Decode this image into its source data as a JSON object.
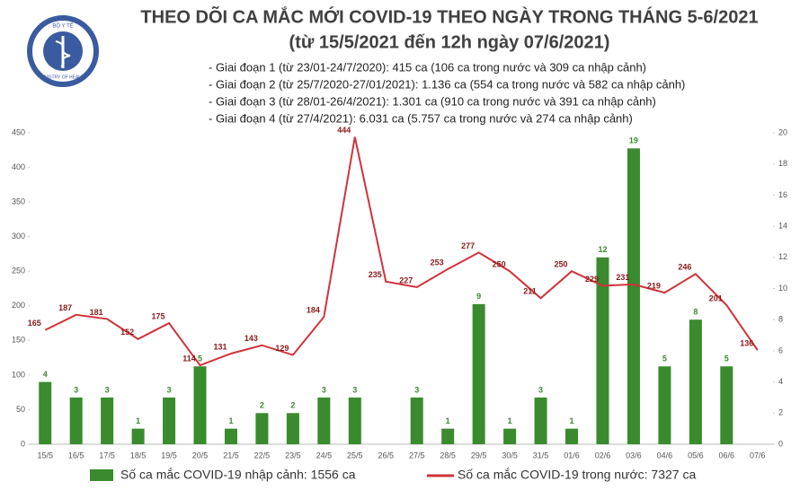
{
  "header": {
    "logo_top": "BỘ Y TẾ",
    "logo_bottom": "MINISTRY OF HEALTH"
  },
  "chart_data": {
    "type": "bar-line",
    "title": "THEO DÕI CA MẮC MỚI COVID-19 THEO NGÀY TRONG THÁNG 5-6/2021",
    "subtitle": "(từ 15/5/2021 đến 12h ngày 07/6/2021)",
    "annotations": [
      "- Giai đoạn 1 (từ 23/01-24/7/2020): 415 ca (106 ca trong nước và 309 ca nhập cảnh)",
      "- Giai đoạn 2 (từ 25/7/2020-27/01/2021): 1.136 ca (554 ca trong nước và 582 ca nhập cảnh)",
      "- Giai đoạn 3 (từ 28/01-26/4/2021): 1.301 ca (910 ca trong nước và 391 ca nhập cảnh)",
      "- Giai đoạn 4 (từ 27/4/2021): 6.031 ca (5.757 ca trong nước và 274 ca nhập cảnh)"
    ],
    "categories": [
      "15/5",
      "16/5",
      "17/5",
      "18/5",
      "19/5",
      "20/5",
      "21/5",
      "22/5",
      "23/5",
      "24/5",
      "25/5",
      "26/5",
      "27/5",
      "28/5",
      "29/5",
      "30/5",
      "31/5",
      "01/6",
      "02/6",
      "03/6",
      "04/6",
      "05/6",
      "06/6",
      "07/6"
    ],
    "series": [
      {
        "name": "Số ca mắc COVID-19 nhập cảnh: 1556 ca",
        "color": "#3a8a2e",
        "kind": "bar",
        "axis": "y2",
        "values": [
          4,
          3,
          3,
          1,
          3,
          5,
          1,
          2,
          2,
          3,
          3,
          null,
          3,
          1,
          9,
          1,
          3,
          1,
          12,
          19,
          5,
          8,
          5,
          null
        ]
      },
      {
        "name": "Số ca mắc COVID-19 trong nước: 7327 ca",
        "color": "#d0333b",
        "kind": "line",
        "values": [
          165,
          187,
          181,
          152,
          175,
          114,
          131,
          143,
          129,
          184,
          444,
          235,
          227,
          253,
          277,
          250,
          211,
          250,
          229,
          231,
          219,
          246,
          201,
          136
        ]
      }
    ],
    "ylim": [
      0,
      450
    ],
    "yticks": [
      0,
      50,
      100,
      150,
      200,
      250,
      300,
      350,
      400,
      450
    ],
    "y2lim": [
      0,
      20
    ],
    "y2ticks": [
      0,
      2,
      4,
      6,
      8,
      10,
      12,
      14,
      16,
      18,
      20
    ]
  }
}
